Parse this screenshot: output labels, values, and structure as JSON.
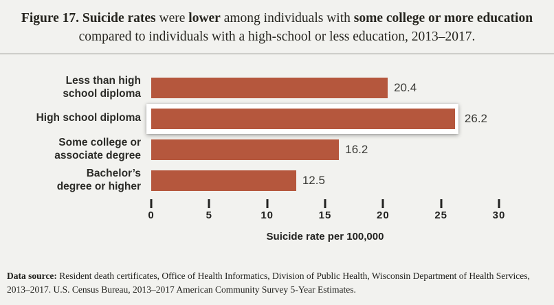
{
  "title": {
    "line1_segments": [
      {
        "text": "Figure 17. Suicide rates",
        "bold": true
      },
      {
        "text": " were ",
        "bold": false
      },
      {
        "text": "lower",
        "bold": true
      },
      {
        "text": " among individuals with ",
        "bold": false
      },
      {
        "text": "some college or more education",
        "bold": true
      }
    ],
    "line2": "compared to individuals with a high-school or less education, 2013–2017."
  },
  "chart_data": {
    "type": "bar",
    "orientation": "horizontal",
    "categories": [
      "Less than high\nschool diploma",
      "High school diploma",
      "Some college or\nassociate degree",
      "Bachelor’s\ndegree or higher"
    ],
    "values": [
      20.4,
      26.2,
      16.2,
      12.5
    ],
    "value_labels": [
      "20.4",
      "26.2",
      "16.2",
      "12.5"
    ],
    "highlighted_index": 1,
    "highlighted_category": "High school diploma",
    "xlabel": "Suicide rate per 100,000",
    "xlim": [
      0,
      30
    ],
    "xticks": [
      0,
      5,
      10,
      15,
      20,
      25,
      30
    ],
    "bar_color": "#b5573d",
    "grid": false,
    "legend": false
  },
  "footer": {
    "label": "Data source:",
    "text": " Resident death certificates, Office of Health Informatics, Division of Public Health, Wisconsin Department of Health Services, 2013–2017. U.S. Census Bureau, 2013–2017 American Community Survey 5-Year Estimates."
  },
  "colors": {
    "background": "#f2f2ef",
    "bar": "#b5573d",
    "highlight_box": "#ffffff",
    "text": "#26251f",
    "divider": "#90908c"
  }
}
